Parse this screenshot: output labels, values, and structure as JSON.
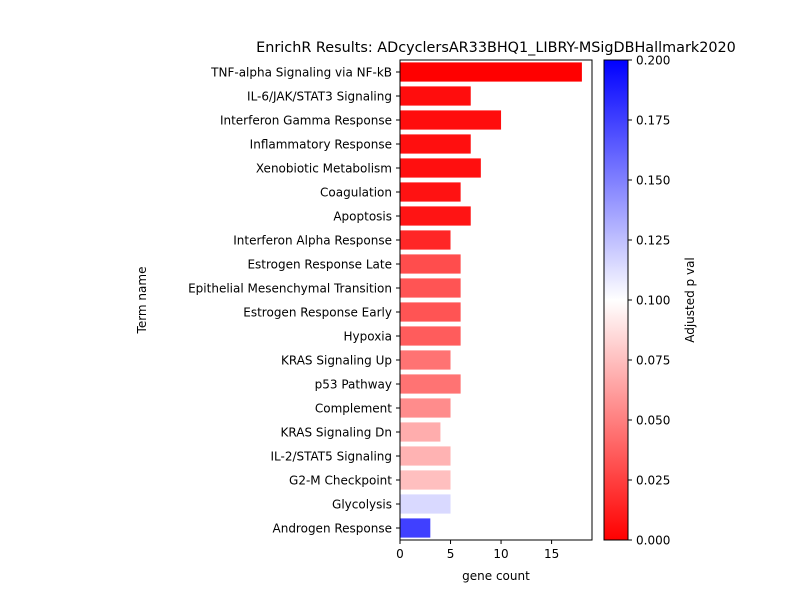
{
  "chart_data": {
    "type": "bar",
    "orientation": "horizontal",
    "title": "EnrichR Results: ADcyclersAR33BHQ1_LIBRY-MSigDBHallmark2020",
    "xlabel": "gene count",
    "ylabel": "Term name",
    "xlim": [
      0,
      19
    ],
    "xticks": [
      0,
      5,
      10,
      15
    ],
    "categories": [
      "TNF-alpha Signaling via NF-kB",
      "IL-6/JAK/STAT3 Signaling",
      "Interferon Gamma Response",
      "Inflammatory Response",
      "Xenobiotic Metabolism",
      "Coagulation",
      "Apoptosis",
      "Interferon Alpha Response",
      "Estrogen Response Late",
      "Epithelial Mesenchymal Transition",
      "Estrogen Response Early",
      "Hypoxia",
      "KRAS Signaling Up",
      "p53 Pathway",
      "Complement",
      "KRAS Signaling Dn",
      "IL-2/STAT5 Signaling",
      "G2-M Checkpoint",
      "Glycolysis",
      "Androgen Response"
    ],
    "values": [
      18,
      7,
      10,
      7,
      8,
      6,
      7,
      5,
      6,
      6,
      6,
      6,
      5,
      6,
      5,
      4,
      5,
      5,
      5,
      3
    ],
    "adjusted_p": [
      0.0,
      0.005,
      0.005,
      0.006,
      0.006,
      0.007,
      0.008,
      0.015,
      0.03,
      0.033,
      0.033,
      0.036,
      0.045,
      0.045,
      0.055,
      0.068,
      0.07,
      0.075,
      0.115,
      0.175
    ],
    "colorbar": {
      "label": "Adjusted p val",
      "range": [
        0.0,
        0.2
      ],
      "ticks": [
        "0.000",
        "0.025",
        "0.050",
        "0.075",
        "0.100",
        "0.125",
        "0.150",
        "0.175",
        "0.200"
      ],
      "colormap": "bwr_r",
      "colors": {
        "low": "#ff0000",
        "mid": "#ffffff",
        "high": "#0000ff"
      }
    },
    "grid": false
  }
}
